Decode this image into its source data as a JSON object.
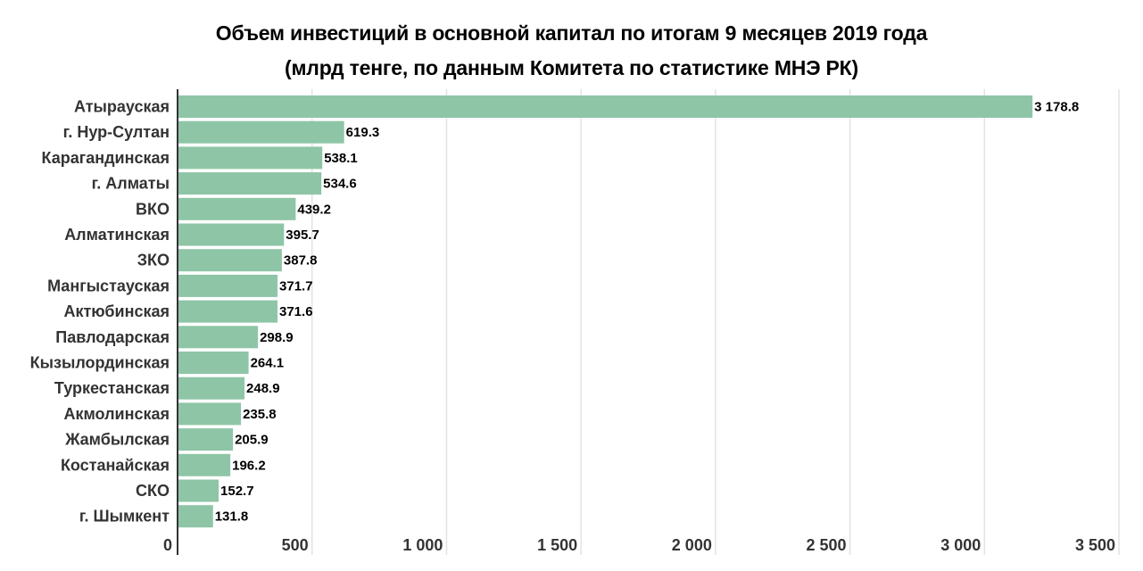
{
  "chart_data": {
    "type": "bar",
    "orientation": "horizontal",
    "title": "Объем инвестиций в основной капитал по итогам 9 месяцев 2019 года",
    "subtitle": "(млрд тенге, по данным Комитета по статистике МНЭ РК)",
    "categories": [
      "Атырауская",
      "г. Нур-Султан",
      "Карагандинская",
      "г. Алматы",
      "ВКО",
      "Алматинская",
      "ЗКО",
      "Мангыстауская",
      "Актюбинская",
      "Павлодарская",
      "Кызылординская",
      "Туркестанская",
      "Акмолинская",
      "Жамбылская",
      "Костанайская",
      "СКО",
      "г. Шымкент"
    ],
    "values": [
      3178.8,
      619.3,
      538.1,
      534.6,
      439.2,
      395.7,
      387.8,
      371.7,
      371.6,
      298.9,
      264.1,
      248.9,
      235.8,
      205.9,
      196.2,
      152.7,
      131.8
    ],
    "value_labels": [
      "3 178.8",
      "619.3",
      "538.1",
      "534.6",
      "439.2",
      "395.7",
      "387.8",
      "371.7",
      "371.6",
      "298.9",
      "264.1",
      "248.9",
      "235.8",
      "205.9",
      "196.2",
      "152.7",
      "131.8"
    ],
    "xlim": [
      0,
      3500
    ],
    "ticks": [
      0,
      500,
      1000,
      1500,
      2000,
      2500,
      3000,
      3500
    ],
    "tick_labels": [
      "0",
      "500",
      "1 000",
      "1 500",
      "2 000",
      "2 500",
      "3 000",
      "3 500"
    ],
    "grid": true,
    "bar_color": "#8ec5a7",
    "grid_color": "#e3e3e3",
    "axis_color": "#333333"
  }
}
